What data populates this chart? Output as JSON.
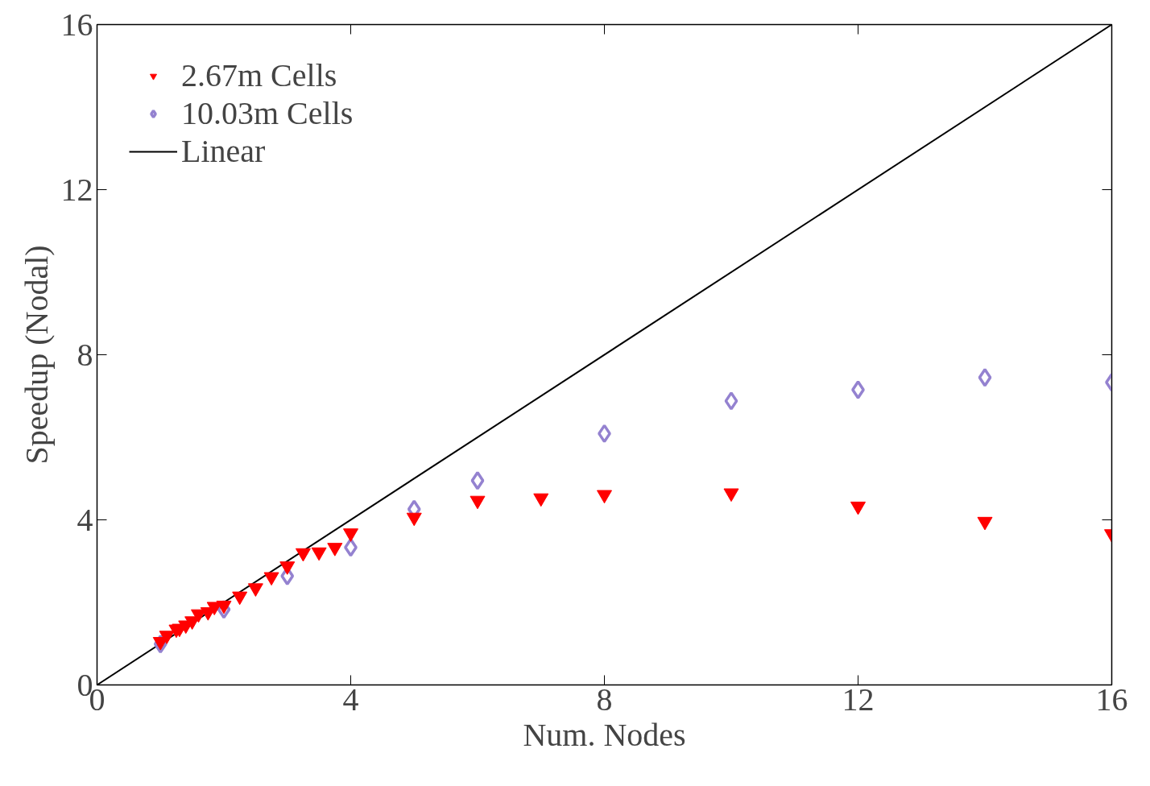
{
  "chart_data": {
    "type": "scatter",
    "xlabel": "Num. Nodes",
    "ylabel": "Speedup (Nodal)",
    "xlim": [
      0,
      16
    ],
    "ylim": [
      0,
      16
    ],
    "xticks": [
      0,
      4,
      8,
      12,
      16
    ],
    "yticks": [
      0,
      4,
      8,
      12,
      16
    ],
    "grid": false,
    "legend": "top left",
    "series": [
      {
        "name": "2.67m Cells",
        "color": "#ff0000",
        "marker": "triangle",
        "x": [
          1,
          1.1,
          1.25,
          1.3,
          1.4,
          1.5,
          1.6,
          1.75,
          1.85,
          2,
          2.25,
          2.5,
          2.75,
          3,
          3.25,
          3.5,
          3.75,
          4,
          5,
          6,
          7,
          8,
          10,
          12,
          14,
          16
        ],
        "values": [
          1.05,
          1.2,
          1.35,
          1.37,
          1.45,
          1.55,
          1.72,
          1.77,
          1.9,
          1.93,
          2.15,
          2.35,
          2.62,
          2.88,
          3.2,
          3.22,
          3.33,
          3.68,
          4.06,
          4.47,
          4.53,
          4.61,
          4.65,
          4.33,
          3.96,
          3.66
        ]
      },
      {
        "name": "10.03m Cells",
        "color": "#9482d0",
        "marker": "diamond",
        "x": [
          1,
          2,
          3,
          4,
          5,
          6,
          8,
          10,
          12,
          14,
          16
        ],
        "values": [
          0.99,
          1.83,
          2.64,
          3.33,
          4.26,
          4.95,
          6.09,
          6.88,
          7.15,
          7.45,
          7.33
        ]
      },
      {
        "name": "Linear",
        "type": "line",
        "color": "#000000",
        "marker": "none",
        "x": [
          0,
          16
        ],
        "values": [
          0,
          16
        ]
      }
    ]
  }
}
